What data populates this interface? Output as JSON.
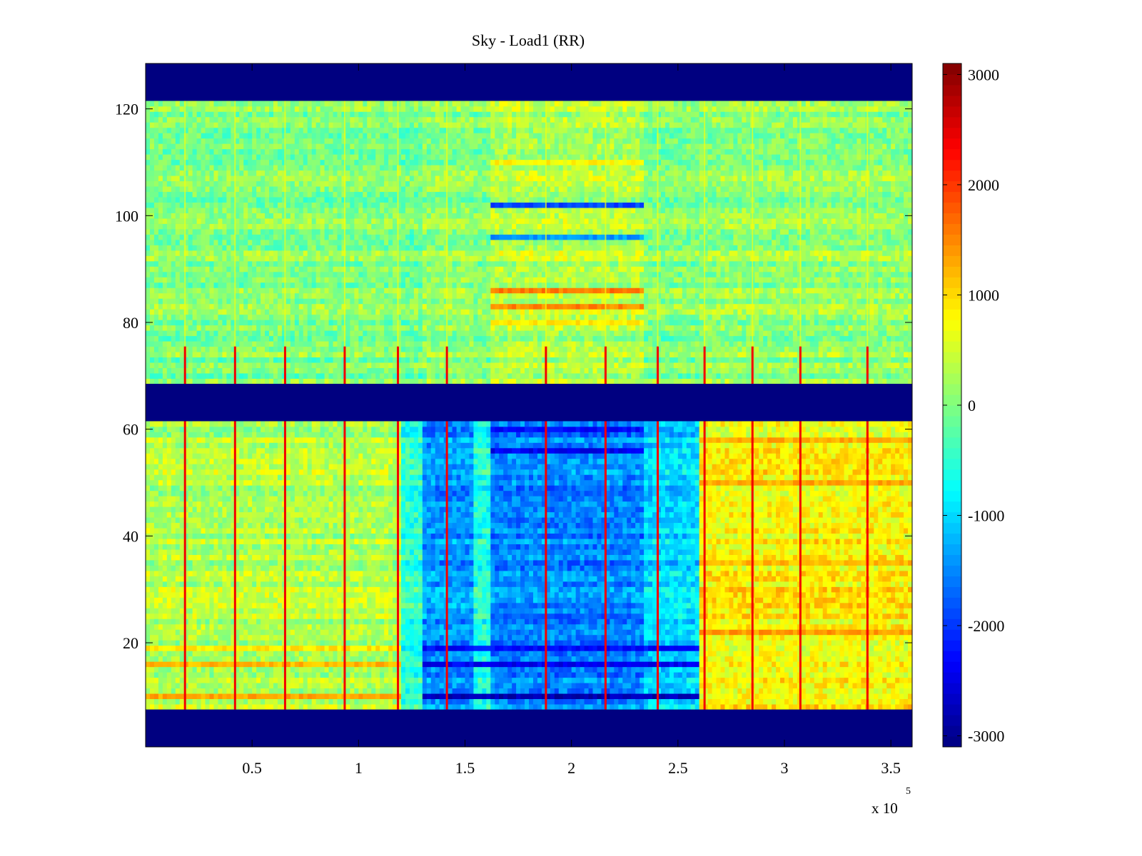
{
  "figure": {
    "title": "Sky - Load1 (RR)",
    "x_multiplier": "x 10",
    "x_multiplier_exponent": "5"
  },
  "chart_data": {
    "type": "heatmap",
    "title": "Sky - Load1 (RR)",
    "xlabel": "",
    "ylabel": "",
    "x_scale_note": "x 10^5",
    "xlim": [
      0,
      3.6
    ],
    "ylim": [
      0.5,
      128.5
    ],
    "x_ticks": [
      0.5,
      1,
      1.5,
      2,
      2.5,
      3,
      3.5
    ],
    "x_tick_labels": [
      "0.5",
      "1",
      "1.5",
      "2",
      "2.5",
      "3",
      "3.5"
    ],
    "y_ticks": [
      20,
      40,
      60,
      80,
      100,
      120
    ],
    "y_tick_labels": [
      "20",
      "40",
      "60",
      "80",
      "100",
      "120"
    ],
    "colormap": "jet",
    "clim": [
      -3100,
      3100
    ],
    "colorbar": {
      "ticks": [
        -3000,
        -2000,
        -1000,
        0,
        1000,
        2000,
        3000
      ],
      "tick_labels": [
        "-3000",
        "-2000",
        "-1000",
        "0",
        "1000",
        "2000",
        "3000"
      ],
      "location": "right"
    },
    "grid": false,
    "masked_rows_value": -3100,
    "masked_row_ranges": [
      [
        1,
        7
      ],
      [
        62,
        68
      ],
      [
        122,
        128
      ]
    ],
    "active_row_ranges": [
      [
        8,
        61
      ],
      [
        69,
        121
      ]
    ],
    "x_segments": [
      {
        "x_start": 0.0,
        "x_end": 1.2,
        "upper_block_level": 0,
        "lower_block_level": 300
      },
      {
        "x_start": 1.2,
        "x_end": 1.3,
        "upper_block_level": -100,
        "lower_block_level": -500
      },
      {
        "x_start": 1.3,
        "x_end": 1.55,
        "upper_block_level": 100,
        "lower_block_level": -1400
      },
      {
        "x_start": 1.55,
        "x_end": 1.63,
        "upper_block_level": 0,
        "lower_block_level": -600
      },
      {
        "x_start": 1.63,
        "x_end": 2.35,
        "upper_block_level": 300,
        "lower_block_level": -1500
      },
      {
        "x_start": 2.35,
        "x_end": 2.6,
        "upper_block_level": 0,
        "lower_block_level": -1000
      },
      {
        "x_start": 2.6,
        "x_end": 3.6,
        "upper_block_level": 100,
        "lower_block_level": 800
      }
    ],
    "spike_columns_x": [
      0.185,
      0.42,
      0.655,
      0.935,
      1.185,
      1.415,
      1.88,
      2.16,
      2.405,
      2.625,
      2.85,
      3.075,
      3.39
    ],
    "spike_value": 2400,
    "strong_negative_rows": [
      {
        "row": 10,
        "x_start": 1.3,
        "x_end": 2.6,
        "value": -2800
      },
      {
        "row": 16,
        "x_start": 1.3,
        "x_end": 2.6,
        "value": -2400
      },
      {
        "row": 19,
        "x_start": 1.3,
        "x_end": 2.6,
        "value": -2300
      },
      {
        "row": 25,
        "x_start": 1.63,
        "x_end": 2.35,
        "value": -1800
      },
      {
        "row": 27,
        "x_start": 1.63,
        "x_end": 2.35,
        "value": -1700
      },
      {
        "row": 48,
        "x_start": 1.63,
        "x_end": 2.35,
        "value": -1700
      },
      {
        "row": 56,
        "x_start": 1.63,
        "x_end": 2.35,
        "value": -2400
      },
      {
        "row": 60,
        "x_start": 1.63,
        "x_end": 2.35,
        "value": -2300
      },
      {
        "row": 96,
        "x_start": 1.63,
        "x_end": 2.35,
        "value": -1400
      },
      {
        "row": 102,
        "x_start": 1.63,
        "x_end": 2.35,
        "value": -1900
      }
    ],
    "strong_positive_rows": [
      {
        "row": 10,
        "x_start": 0.0,
        "x_end": 1.2,
        "value": 1300
      },
      {
        "row": 16,
        "x_start": 0.0,
        "x_end": 1.2,
        "value": 1200
      },
      {
        "row": 19,
        "x_start": 0.0,
        "x_end": 1.2,
        "value": 900
      },
      {
        "row": 22,
        "x_start": 2.6,
        "x_end": 3.6,
        "value": 1400
      },
      {
        "row": 35,
        "x_start": 2.6,
        "x_end": 3.6,
        "value": 1200
      },
      {
        "row": 50,
        "x_start": 2.6,
        "x_end": 3.6,
        "value": 1300
      },
      {
        "row": 58,
        "x_start": 2.6,
        "x_end": 3.6,
        "value": 1300
      },
      {
        "row": 80,
        "x_start": 1.63,
        "x_end": 2.35,
        "value": 900
      },
      {
        "row": 83,
        "x_start": 1.63,
        "x_end": 2.35,
        "value": 1500
      },
      {
        "row": 86,
        "x_start": 1.63,
        "x_end": 2.35,
        "value": 1600
      },
      {
        "row": 110,
        "x_start": 1.63,
        "x_end": 2.35,
        "value": 800
      }
    ]
  }
}
